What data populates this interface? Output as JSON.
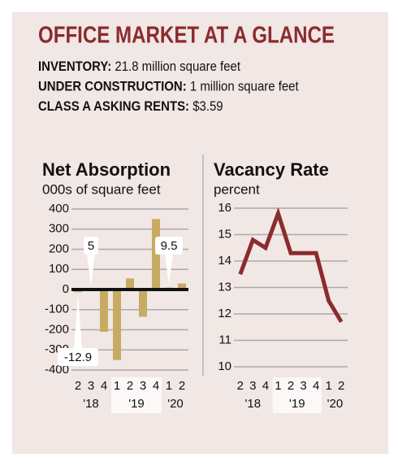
{
  "header": {
    "title": "OFFICE MARKET AT A GLANCE",
    "facts": [
      {
        "label": "INVENTORY:",
        "value": "21.8 million square feet"
      },
      {
        "label": "UNDER CONSTRUCTION:",
        "value": "1 million square feet"
      },
      {
        "label": "CLASS A ASKING RENTS:",
        "value": "$3.59"
      }
    ]
  },
  "chart_data": [
    {
      "type": "bar",
      "title": "Net Absorption",
      "subtitle": "000s of square feet",
      "categories": [
        "2",
        "3",
        "4",
        "1",
        "2",
        "3",
        "4",
        "1",
        "2"
      ],
      "x_groups": [
        {
          "label": "'18",
          "span": 3
        },
        {
          "label": "'19",
          "span": 4
        },
        {
          "label": "'20",
          "span": 2
        }
      ],
      "values": [
        -12.9,
        5,
        -210,
        -350,
        55,
        -135,
        350,
        9.5,
        30
      ],
      "value_labels": [
        "-12.9",
        "5",
        null,
        null,
        null,
        null,
        null,
        "9.5",
        null
      ],
      "color": "#c8ab62",
      "ylim": [
        -400,
        400
      ],
      "yticks": [
        -400,
        -300,
        -200,
        -100,
        0,
        100,
        200,
        300,
        400
      ],
      "grid": true
    },
    {
      "type": "line",
      "title": "Vacancy Rate",
      "subtitle": "percent",
      "categories": [
        "2",
        "3",
        "4",
        "1",
        "2",
        "3",
        "4",
        "1",
        "2"
      ],
      "x_groups": [
        {
          "label": "'18",
          "span": 3
        },
        {
          "label": "'19",
          "span": 4
        },
        {
          "label": "'20",
          "span": 2
        }
      ],
      "values": [
        13.5,
        14.8,
        14.5,
        15.8,
        14.3,
        14.3,
        14.3,
        12.5,
        11.7
      ],
      "color": "#8b2b2e",
      "ylim": [
        10,
        16
      ],
      "yticks": [
        10,
        11,
        12,
        13,
        14,
        15,
        16
      ],
      "grid": true
    }
  ]
}
